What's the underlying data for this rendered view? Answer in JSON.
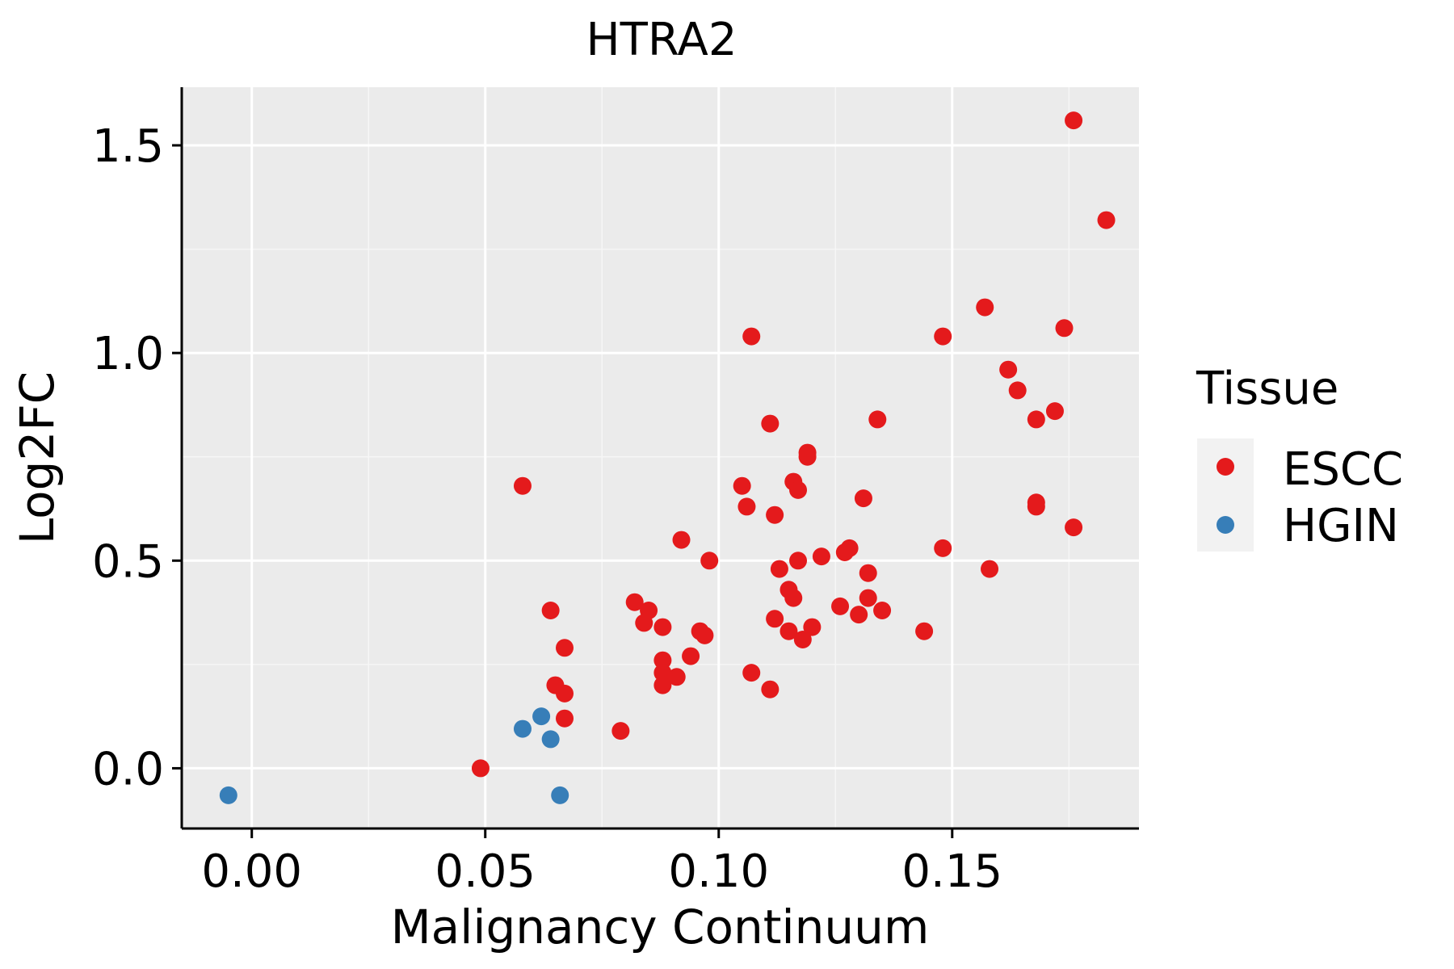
{
  "chart_data": {
    "type": "scatter",
    "title": "HTRA2",
    "xlabel": "Malignancy Continuum",
    "ylabel": "Log2FC",
    "xlim": [
      -0.015,
      0.19
    ],
    "ylim": [
      -0.145,
      1.64
    ],
    "xticks": [
      0.0,
      0.05,
      0.1,
      0.15
    ],
    "xtick_labels": [
      "0.00",
      "0.05",
      "0.10",
      "0.15"
    ],
    "yticks": [
      0.0,
      0.5,
      1.0,
      1.5
    ],
    "ytick_labels": [
      "0.0",
      "0.5",
      "1.0",
      "1.5"
    ],
    "grid": true,
    "legend": {
      "title": "Tissue",
      "position": "right",
      "entries": [
        {
          "label": "ESCC",
          "color": "#e41a1c"
        },
        {
          "label": "HGIN",
          "color": "#377eb8"
        }
      ]
    },
    "series": [
      {
        "name": "ESCC",
        "color": "#e41a1c",
        "points": [
          [
            0.049,
            0.0
          ],
          [
            0.058,
            0.68
          ],
          [
            0.064,
            0.38
          ],
          [
            0.065,
            0.2
          ],
          [
            0.067,
            0.18
          ],
          [
            0.067,
            0.12
          ],
          [
            0.067,
            0.29
          ],
          [
            0.079,
            0.09
          ],
          [
            0.082,
            0.4
          ],
          [
            0.085,
            0.38
          ],
          [
            0.084,
            0.35
          ],
          [
            0.088,
            0.34
          ],
          [
            0.088,
            0.26
          ],
          [
            0.088,
            0.23
          ],
          [
            0.088,
            0.2
          ],
          [
            0.091,
            0.22
          ],
          [
            0.092,
            0.55
          ],
          [
            0.094,
            0.27
          ],
          [
            0.096,
            0.33
          ],
          [
            0.097,
            0.32
          ],
          [
            0.098,
            0.5
          ],
          [
            0.105,
            0.68
          ],
          [
            0.106,
            0.63
          ],
          [
            0.107,
            1.04
          ],
          [
            0.107,
            0.23
          ],
          [
            0.111,
            0.19
          ],
          [
            0.111,
            0.83
          ],
          [
            0.112,
            0.61
          ],
          [
            0.112,
            0.36
          ],
          [
            0.113,
            0.48
          ],
          [
            0.115,
            0.43
          ],
          [
            0.115,
            0.33
          ],
          [
            0.116,
            0.69
          ],
          [
            0.116,
            0.41
          ],
          [
            0.117,
            0.67
          ],
          [
            0.117,
            0.5
          ],
          [
            0.118,
            0.31
          ],
          [
            0.119,
            0.76
          ],
          [
            0.119,
            0.75
          ],
          [
            0.12,
            0.34
          ],
          [
            0.122,
            0.51
          ],
          [
            0.126,
            0.39
          ],
          [
            0.127,
            0.52
          ],
          [
            0.128,
            0.53
          ],
          [
            0.13,
            0.37
          ],
          [
            0.131,
            0.65
          ],
          [
            0.132,
            0.47
          ],
          [
            0.132,
            0.41
          ],
          [
            0.134,
            0.84
          ],
          [
            0.135,
            0.38
          ],
          [
            0.144,
            0.33
          ],
          [
            0.148,
            0.53
          ],
          [
            0.148,
            1.04
          ],
          [
            0.157,
            1.11
          ],
          [
            0.158,
            0.48
          ],
          [
            0.162,
            0.96
          ],
          [
            0.164,
            0.91
          ],
          [
            0.168,
            0.84
          ],
          [
            0.168,
            0.64
          ],
          [
            0.168,
            0.63
          ],
          [
            0.172,
            0.86
          ],
          [
            0.174,
            1.06
          ],
          [
            0.176,
            1.56
          ],
          [
            0.176,
            0.58
          ],
          [
            0.183,
            1.32
          ]
        ]
      },
      {
        "name": "HGIN",
        "color": "#377eb8",
        "points": [
          [
            -0.005,
            -0.065
          ],
          [
            0.058,
            0.095
          ],
          [
            0.062,
            0.125
          ],
          [
            0.064,
            0.07
          ],
          [
            0.066,
            -0.065
          ]
        ]
      }
    ]
  },
  "colors": {
    "panel_background": "#ebebeb",
    "grid_major": "#ffffff",
    "grid_minor": "#f6f6f6",
    "legend_key_background": "#f2f2f2"
  }
}
